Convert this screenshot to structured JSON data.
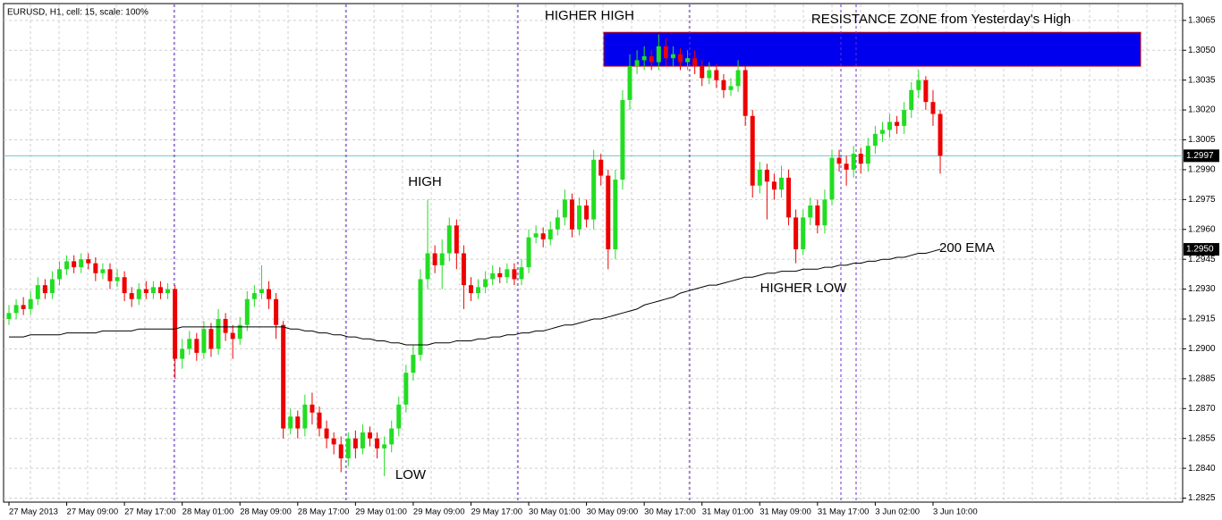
{
  "chart_data": {
    "type": "candlestick",
    "title": "EURUSD, H1, cell: 15, scale: 100%",
    "annotations": [
      "HIGHER HIGH",
      "RESISTANCE ZONE from Yesterday's High",
      "HIGH",
      "HIGHER LOW",
      "LOW"
    ],
    "up_color": "#22dd22",
    "down_color": "#ee0000",
    "grid": true,
    "ylim": [
      1.2823,
      1.3073
    ],
    "yticks": [
      1.2825,
      {
        "value": 1.284,
        "label": "1.2840"
      },
      1.2855,
      {
        "value": 1.287,
        "label": "1.2870"
      },
      1.2885,
      {
        "value": 1.29,
        "label": "1.2900"
      },
      1.2915,
      {
        "value": 1.293,
        "label": "1.2930"
      },
      1.2945,
      {
        "value": 1.296,
        "label": "1.2960"
      },
      1.2975,
      {
        "value": 1.299,
        "label": "1.2990"
      },
      1.3005,
      {
        "value": 1.302,
        "label": "1.3020"
      },
      1.3035,
      {
        "value": 1.305,
        "label": "1.3050"
      },
      1.3065
    ],
    "price_markers": [
      {
        "value": 1.2997,
        "label": "1.2997",
        "color": "#66cccc"
      },
      {
        "value": 1.295,
        "label": "1.2950",
        "color": null
      }
    ],
    "resistance_zone": {
      "top": 1.3059,
      "bottom": 1.3042,
      "color": "#0000ee"
    },
    "categories": [
      "27 May 2013",
      null,
      null,
      null,
      null,
      null,
      null,
      null,
      "27 May 09:00",
      null,
      null,
      null,
      null,
      null,
      null,
      null,
      "27 May 17:00",
      null,
      null,
      null,
      null,
      null,
      null,
      null,
      "28 May 01:00",
      null,
      null,
      null,
      null,
      null,
      null,
      null,
      "28 May 09:00",
      null,
      null,
      null,
      null,
      null,
      null,
      null,
      "28 May 17:00",
      null,
      null,
      null,
      null,
      null,
      null,
      null,
      "29 May 01:00",
      null,
      null,
      null,
      null,
      null,
      null,
      null,
      "29 May 09:00",
      null,
      null,
      null,
      null,
      null,
      null,
      null,
      "29 May 17:00",
      null,
      null,
      null,
      null,
      null,
      null,
      null,
      "30 May 01:00",
      null,
      null,
      null,
      null,
      null,
      null,
      null,
      "30 May 09:00",
      null,
      null,
      null,
      null,
      null,
      null,
      null,
      "30 May 17:00",
      null,
      null,
      null,
      null,
      null,
      null,
      null,
      "31 May 01:00",
      null,
      null,
      null,
      null,
      null,
      null,
      null,
      "31 May 09:00",
      null,
      null,
      null,
      null,
      null,
      null,
      null,
      "31 May 17:00",
      null,
      null,
      null,
      null,
      null,
      null,
      null,
      "3 Jun 02:00",
      null,
      null,
      null,
      null,
      null,
      null,
      null,
      "3 Jun 10:00",
      null
    ],
    "open": [
      1.2915,
      1.2918,
      1.2922,
      1.292,
      1.2925,
      1.2932,
      1.2928,
      1.2935,
      1.294,
      1.2944,
      1.2941,
      1.2945,
      1.2943,
      1.2938,
      1.294,
      1.2934,
      1.2936,
      1.2928,
      1.2925,
      1.293,
      1.2928,
      1.2931,
      1.2928,
      1.293,
      1.2895,
      1.29,
      1.2905,
      1.2898,
      1.291,
      1.29,
      1.2915,
      1.2908,
      1.2905,
      1.2912,
      1.2925,
      1.2928,
      1.293,
      1.2925,
      1.2912,
      1.286,
      1.2866,
      1.286,
      1.2872,
      1.2868,
      1.286,
      1.2855,
      1.2852,
      1.2845,
      1.2855,
      1.285,
      1.2858,
      1.2855,
      1.285,
      1.2852,
      1.286,
      1.2872,
      1.2888,
      1.2897,
      1.2935,
      1.2948,
      1.2942,
      1.2948,
      1.2962,
      1.2948,
      1.2932,
      1.2928,
      1.2931,
      1.2935,
      1.2938,
      1.2936,
      1.294,
      1.2935,
      1.2941,
      1.2956,
      1.2958,
      1.2955,
      1.296,
      1.2966,
      1.2975,
      1.296,
      1.2972,
      1.2965,
      1.2995,
      1.2987,
      1.295,
      1.2985,
      1.3025,
      1.3042,
      1.3045,
      1.3047,
      1.3044,
      1.3052,
      1.3046,
      1.3048,
      1.3044,
      1.3046,
      1.3042,
      1.3036,
      1.304,
      1.3035,
      1.303,
      1.3032,
      1.304,
      1.3017,
      1.2982,
      1.299,
      1.2984,
      1.298,
      1.2986,
      1.2966,
      1.295,
      1.2966,
      1.2972,
      1.2962,
      1.2975,
      1.2996,
      1.2993,
      1.299,
      1.2998,
      1.2993,
      1.3002,
      1.3008,
      1.301,
      1.3014,
      1.3012,
      1.302,
      1.303,
      1.3035,
      1.3024,
      1.3018
    ],
    "high": [
      1.2922,
      1.2925,
      1.2926,
      1.2929,
      1.2936,
      1.2935,
      1.2939,
      1.2944,
      1.2947,
      1.2947,
      1.2948,
      1.2948,
      1.2946,
      1.2943,
      1.2943,
      1.294,
      1.2939,
      1.2931,
      1.2933,
      1.2934,
      1.2934,
      1.2934,
      1.2933,
      1.2932,
      1.2905,
      1.2909,
      1.2908,
      1.2914,
      1.2913,
      1.292,
      1.2918,
      1.2912,
      1.2916,
      1.2929,
      1.2932,
      1.2942,
      1.2934,
      1.2928,
      1.2914,
      1.287,
      1.2869,
      1.2877,
      1.2878,
      1.2871,
      1.2864,
      1.2858,
      1.2856,
      1.2858,
      1.2859,
      1.2862,
      1.2861,
      1.2858,
      1.2856,
      1.2864,
      1.2876,
      1.2892,
      1.2902,
      1.294,
      1.2975,
      1.2952,
      1.2955,
      1.2966,
      1.2965,
      1.2952,
      1.2936,
      1.2935,
      1.2939,
      1.2942,
      1.2941,
      1.2943,
      1.2943,
      1.2945,
      1.296,
      1.2962,
      1.2961,
      1.2964,
      1.297,
      1.298,
      1.2978,
      1.2976,
      1.2975,
      1.3,
      1.2998,
      1.299,
      1.299,
      1.303,
      1.3048,
      1.305,
      1.3052,
      1.305,
      1.3058,
      1.3056,
      1.3052,
      1.3051,
      1.305,
      1.305,
      1.3045,
      1.3044,
      1.3043,
      1.3038,
      1.3036,
      1.3045,
      1.3042,
      1.302,
      1.2994,
      1.2993,
      1.2988,
      1.2992,
      1.299,
      1.297,
      1.297,
      1.2976,
      1.2975,
      1.298,
      1.3,
      1.3,
      1.2997,
      1.3002,
      1.3001,
      1.3006,
      1.3012,
      1.3014,
      1.3018,
      1.3017,
      1.3024,
      1.3034,
      1.304,
      1.3037,
      1.303,
      1.302
    ],
    "low": [
      1.2912,
      1.2915,
      1.2917,
      1.2917,
      1.2922,
      1.2925,
      1.2925,
      1.2932,
      1.2937,
      1.2938,
      1.2938,
      1.294,
      1.2934,
      1.2935,
      1.293,
      1.2931,
      1.2924,
      1.2921,
      1.2922,
      1.2925,
      1.2925,
      1.2925,
      1.2925,
      1.2885,
      1.289,
      1.2897,
      1.2894,
      1.2895,
      1.2896,
      1.2897,
      1.2904,
      1.2895,
      1.2902,
      1.2909,
      1.2921,
      1.2925,
      1.292,
      1.2905,
      1.2855,
      1.2857,
      1.2855,
      1.2856,
      1.2862,
      1.2856,
      1.285,
      1.2847,
      1.2838,
      1.2841,
      1.2845,
      1.2847,
      1.2851,
      1.2845,
      1.2836,
      1.2848,
      1.2856,
      1.2868,
      1.2884,
      1.2894,
      1.293,
      1.2938,
      1.293,
      1.2944,
      1.294,
      1.292,
      1.2924,
      1.2925,
      1.2928,
      1.2932,
      1.2933,
      1.2933,
      1.2932,
      1.2932,
      1.2938,
      1.2953,
      1.2951,
      1.2952,
      1.2957,
      1.2962,
      1.2956,
      1.2957,
      1.2961,
      1.296,
      1.2982,
      1.294,
      1.2945,
      1.298,
      1.302,
      1.3038,
      1.304,
      1.304,
      1.304,
      1.3042,
      1.3042,
      1.304,
      1.304,
      1.3038,
      1.3032,
      1.3033,
      1.3031,
      1.3026,
      1.3027,
      1.3029,
      1.3012,
      1.2976,
      1.2978,
      1.2965,
      1.2975,
      1.2976,
      1.2962,
      1.2943,
      1.2947,
      1.2962,
      1.2958,
      1.2958,
      1.2972,
      1.2989,
      1.2982,
      1.2986,
      1.2988,
      1.2989,
      1.2998,
      1.3004,
      1.3006,
      1.3008,
      1.3008,
      1.3016,
      1.3026,
      1.302,
      1.3012,
      1.2988
    ],
    "close": [
      1.2918,
      1.2922,
      1.292,
      1.2925,
      1.2932,
      1.2928,
      1.2935,
      1.294,
      1.2944,
      1.2941,
      1.2945,
      1.2943,
      1.2938,
      1.294,
      1.2934,
      1.2936,
      1.2928,
      1.2925,
      1.293,
      1.2928,
      1.2931,
      1.2928,
      1.293,
      1.2895,
      1.29,
      1.2905,
      1.2898,
      1.291,
      1.29,
      1.2915,
      1.2908,
      1.2905,
      1.2912,
      1.2925,
      1.2928,
      1.293,
      1.2925,
      1.2912,
      1.286,
      1.2866,
      1.286,
      1.2872,
      1.2868,
      1.286,
      1.2855,
      1.2852,
      1.2845,
      1.2855,
      1.285,
      1.2858,
      1.2855,
      1.285,
      1.2852,
      1.286,
      1.2872,
      1.2888,
      1.2897,
      1.2935,
      1.2948,
      1.2942,
      1.2948,
      1.2962,
      1.2948,
      1.2932,
      1.2928,
      1.2931,
      1.2935,
      1.2938,
      1.2936,
      1.294,
      1.2935,
      1.2941,
      1.2956,
      1.2958,
      1.2955,
      1.296,
      1.2966,
      1.2975,
      1.296,
      1.2972,
      1.2965,
      1.2995,
      1.2987,
      1.295,
      1.2985,
      1.3025,
      1.3042,
      1.3045,
      1.3047,
      1.3044,
      1.3052,
      1.3046,
      1.3048,
      1.3044,
      1.3046,
      1.3042,
      1.3036,
      1.304,
      1.3035,
      1.303,
      1.3032,
      1.304,
      1.3017,
      1.2982,
      1.299,
      1.2984,
      1.298,
      1.2986,
      1.2966,
      1.295,
      1.2966,
      1.2972,
      1.2962,
      1.2975,
      1.2996,
      1.2993,
      1.299,
      1.2998,
      1.2993,
      1.3002,
      1.3008,
      1.301,
      1.3014,
      1.3012,
      1.302,
      1.303,
      1.3035,
      1.3024,
      1.3018,
      1.2997
    ],
    "ema": {
      "name": "200 EMA",
      "color": "#000000",
      "values": [
        1.2906,
        1.2906,
        1.2906,
        1.2907,
        1.2907,
        1.2907,
        1.2907,
        1.2907,
        1.2908,
        1.2908,
        1.2908,
        1.2908,
        1.2908,
        1.2909,
        1.2909,
        1.2909,
        1.2909,
        1.2909,
        1.291,
        1.291,
        1.291,
        1.291,
        1.291,
        1.291,
        1.2911,
        1.2911,
        1.2911,
        1.2911,
        1.2911,
        1.2911,
        1.2911,
        1.2911,
        1.2911,
        1.2911,
        1.2911,
        1.2911,
        1.2911,
        1.2911,
        1.2911,
        1.291,
        1.291,
        1.2909,
        1.2909,
        1.2908,
        1.2908,
        1.2907,
        1.2907,
        1.2906,
        1.2906,
        1.2905,
        1.2905,
        1.2904,
        1.2904,
        1.2903,
        1.2903,
        1.2902,
        1.2902,
        1.2902,
        1.2902,
        1.2903,
        1.2903,
        1.2903,
        1.2904,
        1.2904,
        1.2904,
        1.2905,
        1.2905,
        1.2906,
        1.2906,
        1.2907,
        1.2907,
        1.2908,
        1.2908,
        1.2909,
        1.2909,
        1.291,
        1.2911,
        1.2912,
        1.2912,
        1.2913,
        1.2914,
        1.2915,
        1.2915,
        1.2916,
        1.2917,
        1.2918,
        1.2919,
        1.292,
        1.2922,
        1.2923,
        1.2924,
        1.2925,
        1.2926,
        1.2928,
        1.2929,
        1.293,
        1.2931,
        1.2932,
        1.2932,
        1.2933,
        1.2934,
        1.2935,
        1.2936,
        1.2936,
        1.2937,
        1.2938,
        1.2938,
        1.2939,
        1.2939,
        1.2939,
        1.294,
        1.294,
        1.294,
        1.2941,
        1.2941,
        1.2942,
        1.2942,
        1.2943,
        1.2943,
        1.2944,
        1.2944,
        1.2945,
        1.2945,
        1.2946,
        1.2946,
        1.2947,
        1.2948,
        1.2948,
        1.2949,
        1.295
      ]
    }
  }
}
